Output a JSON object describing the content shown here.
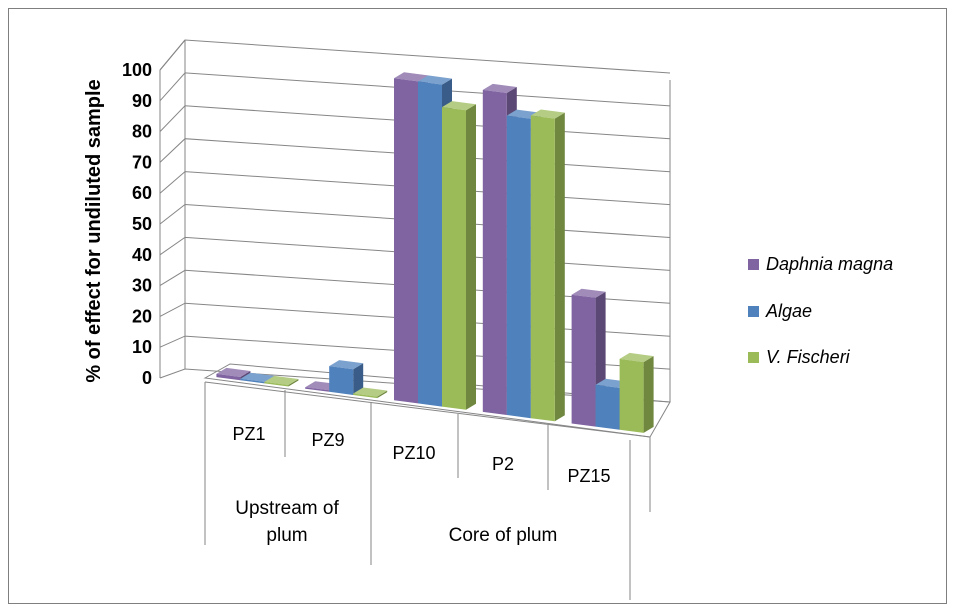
{
  "chart_data": {
    "type": "bar",
    "title": "",
    "ylabel": "% of effect for undiluted sample",
    "xlabel": "",
    "ylim": [
      0,
      100
    ],
    "yticks": [
      0,
      10,
      20,
      30,
      40,
      50,
      60,
      70,
      80,
      90,
      100
    ],
    "grid": true,
    "legend_position": "right",
    "categories": [
      "PZ1",
      "PZ9",
      "PZ10",
      "P2",
      "PZ15"
    ],
    "groups": [
      {
        "label": "Upstream of plum",
        "categories": [
          "PZ1",
          "PZ9"
        ]
      },
      {
        "label": "Core of plum",
        "categories": [
          "PZ10",
          "P2",
          "PZ15"
        ]
      }
    ],
    "series": [
      {
        "name": "Daphnia magna",
        "color": "#8064A2",
        "values": [
          1,
          0,
          100,
          100,
          40
        ]
      },
      {
        "name": "Algae",
        "color": "#4F81BD",
        "values": [
          0,
          8,
          100,
          93,
          13
        ]
      },
      {
        "name": "V. Fischeri",
        "color": "#9BBB59",
        "values": [
          0,
          0,
          93,
          94,
          22
        ]
      }
    ]
  }
}
